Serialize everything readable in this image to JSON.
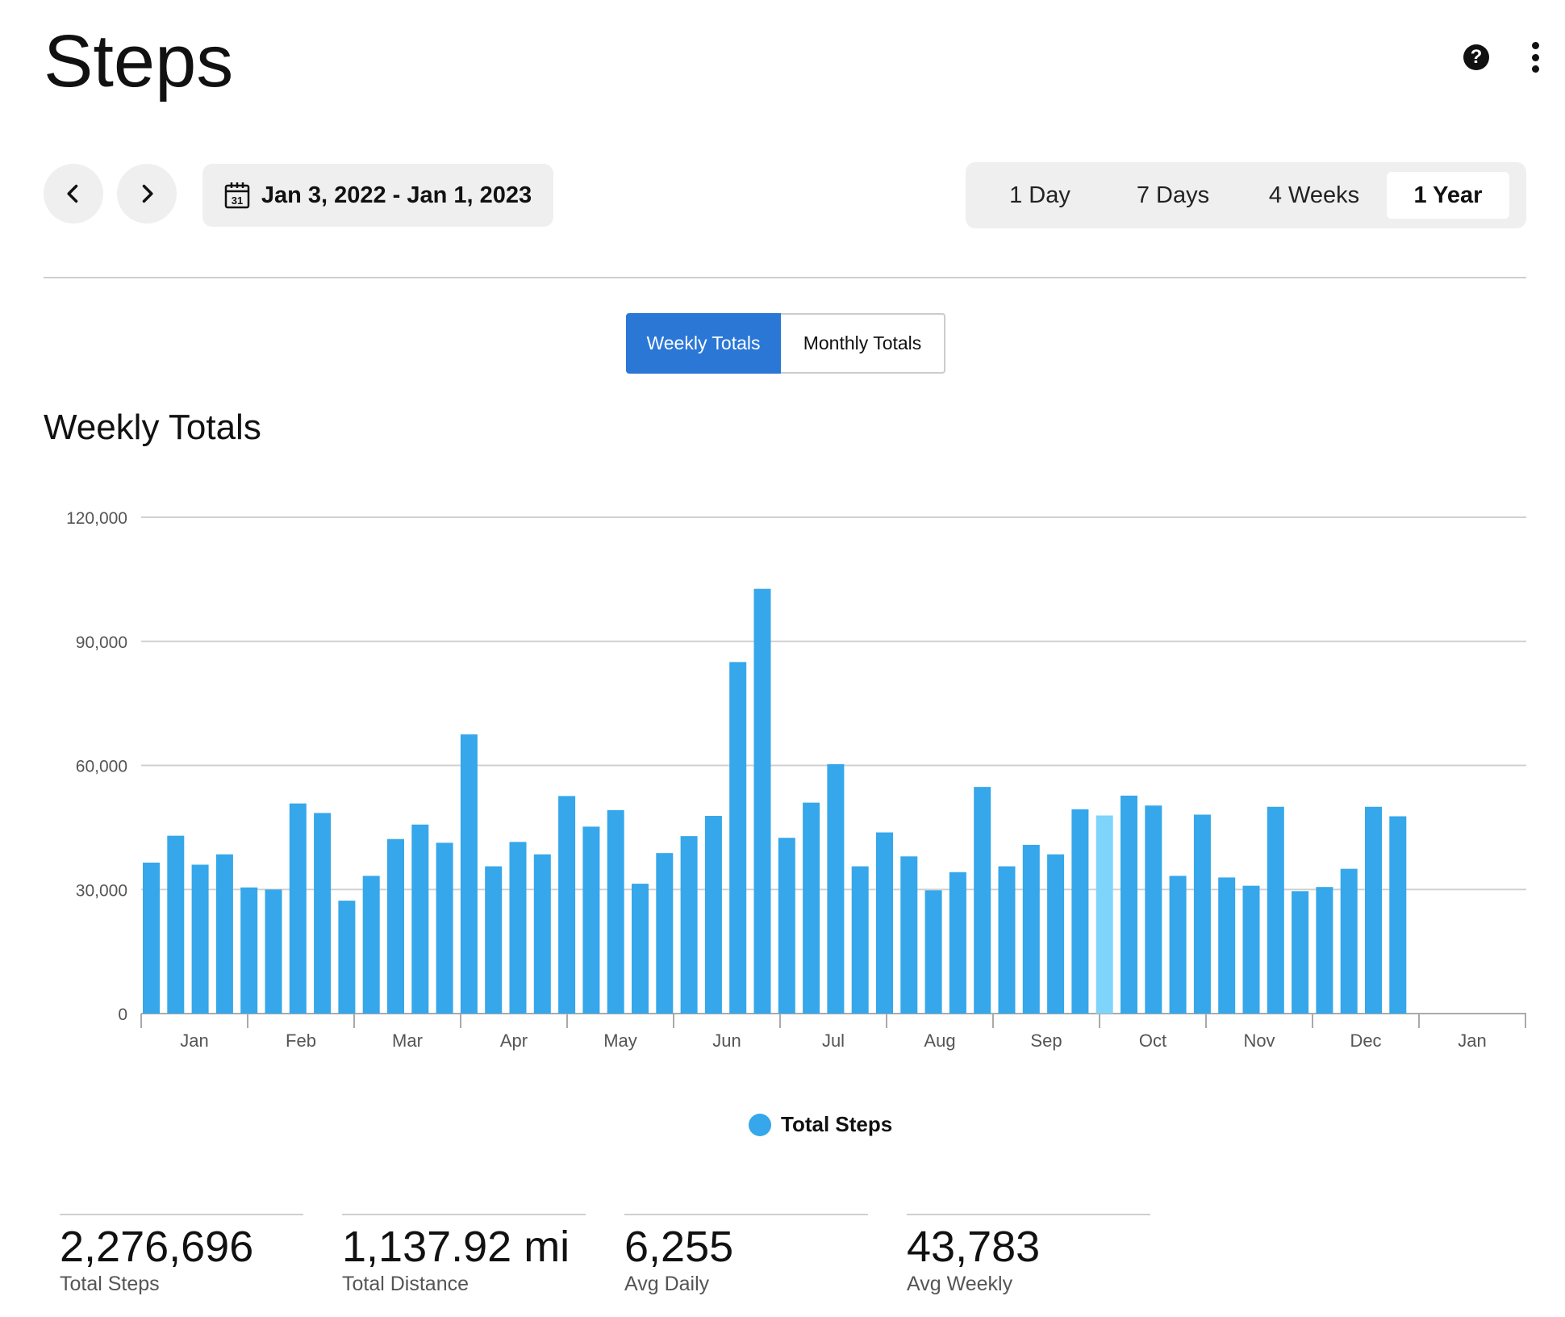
{
  "header": {
    "title": "Steps"
  },
  "nav": {
    "date_range": "Jan 3, 2022 - Jan 1, 2023",
    "calendar_day": "31"
  },
  "range_tabs": [
    {
      "label": "1 Day",
      "active": false
    },
    {
      "label": "7 Days",
      "active": false
    },
    {
      "label": "4 Weeks",
      "active": false
    },
    {
      "label": "1 Year",
      "active": true
    }
  ],
  "view_toggle": {
    "weekly": "Weekly Totals",
    "monthly": "Monthly Totals",
    "selected": "weekly"
  },
  "section_title": "Weekly Totals",
  "colors": {
    "bar": "#35a7ea",
    "bar_highlight": "#7fd4fc",
    "accent": "#2a77d6",
    "grid": "#d0d0d0"
  },
  "chart_data": {
    "type": "bar",
    "ylim": [
      0,
      120000
    ],
    "yticks": [
      "0",
      "30,000",
      "60,000",
      "90,000",
      "120,000"
    ],
    "month_labels": [
      "Jan",
      "Feb",
      "Mar",
      "Apr",
      "May",
      "Jun",
      "Jul",
      "Aug",
      "Sep",
      "Oct",
      "Nov",
      "Dec",
      "Jan"
    ],
    "series": [
      {
        "name": "Total Steps",
        "values": [
          36500,
          43000,
          36000,
          38500,
          30500,
          30000,
          50800,
          48500,
          27300,
          33300,
          42200,
          45700,
          41300,
          67500,
          35600,
          41500,
          38500,
          52600,
          45200,
          49200,
          31400,
          38800,
          42900,
          47800,
          85000,
          102700,
          42500,
          51000,
          60300,
          35600,
          43800,
          38000,
          29800,
          34200,
          54800,
          35600,
          40800,
          38500,
          49400,
          47900,
          52700,
          50300,
          33300,
          48100,
          32900,
          30900,
          50000,
          29600,
          30600,
          35000,
          50000,
          47700
        ]
      }
    ],
    "highlight_index": 39,
    "legend": "Total Steps"
  },
  "stats": [
    {
      "value": "2,276,696",
      "label": "Total Steps"
    },
    {
      "value": "1,137.92 mi",
      "label": "Total Distance"
    },
    {
      "value": "6,255",
      "label": "Avg Daily"
    },
    {
      "value": "43,783",
      "label": "Avg Weekly"
    }
  ]
}
